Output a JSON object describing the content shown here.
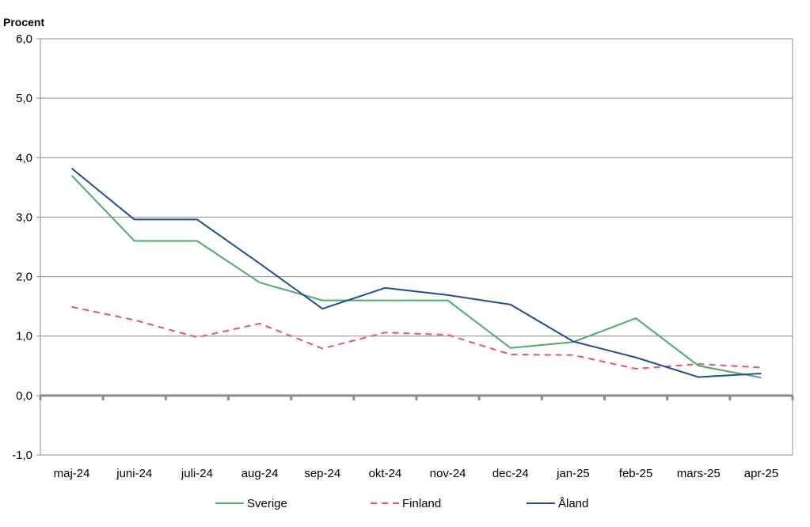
{
  "chart_data": {
    "type": "line",
    "title": "",
    "ylabel": "Procent",
    "xlabel": "",
    "categories": [
      "maj-24",
      "juni-24",
      "juli-24",
      "aug-24",
      "sep-24",
      "okt-24",
      "nov-24",
      "dec-24",
      "jan-25",
      "feb-25",
      "mars-25",
      "apr-25"
    ],
    "ylim": [
      -1.0,
      6.0
    ],
    "yticks": [
      "-1,0",
      "0,0",
      "1,0",
      "2,0",
      "3,0",
      "4,0",
      "5,0",
      "6,0"
    ],
    "grid": true,
    "legend_position": "bottom",
    "series": [
      {
        "name": "Sverige",
        "color": "#4aab6d",
        "dash": "solid",
        "values": [
          3.7,
          2.6,
          2.6,
          1.9,
          1.6,
          1.6,
          1.6,
          0.8,
          0.9,
          1.3,
          0.5,
          0.3
        ]
      },
      {
        "name": "Finland",
        "color": "#e8507c",
        "dash": "dashed",
        "values": [
          1.49,
          1.27,
          0.98,
          1.21,
          0.79,
          1.06,
          1.02,
          0.69,
          0.68,
          0.45,
          0.53,
          0.47
        ]
      },
      {
        "name": "Åland",
        "color": "#1f4e99",
        "dash": "solid",
        "values": [
          3.82,
          2.96,
          2.96,
          2.22,
          1.46,
          1.81,
          1.69,
          1.53,
          0.91,
          0.64,
          0.31,
          0.37
        ]
      }
    ]
  }
}
